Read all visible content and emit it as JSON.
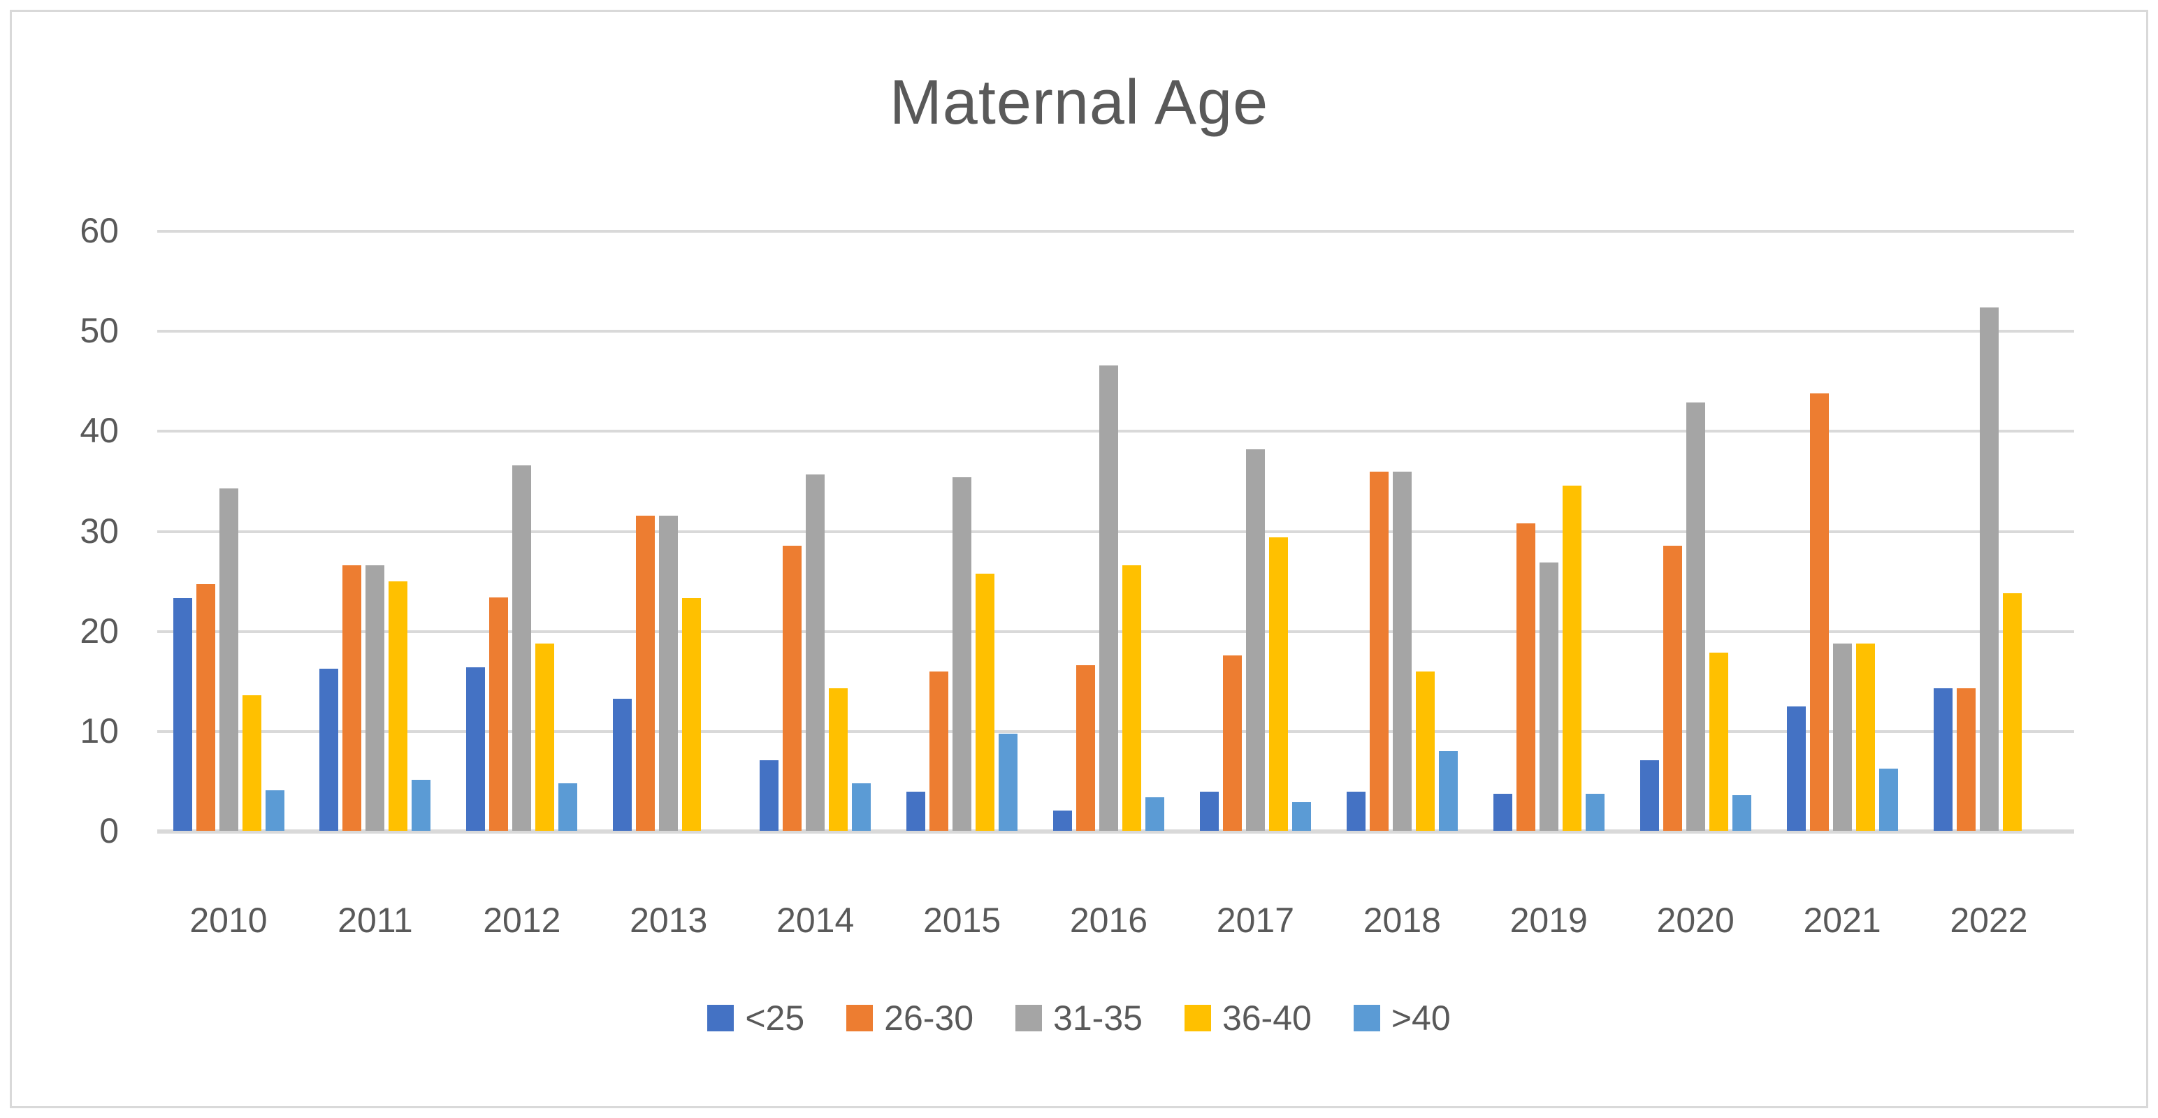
{
  "chart": {
    "background": "#FFFFFF",
    "border_color": "#D9D9D9",
    "grid_color": "#D9D9D9",
    "text_color": "#595959"
  },
  "chart_data": {
    "type": "bar",
    "title": "Maternal Age",
    "xlabel": "",
    "ylabel": "",
    "ylim": [
      0,
      60
    ],
    "yticks": [
      0,
      10,
      20,
      30,
      40,
      50,
      60
    ],
    "grid": true,
    "legend_position": "bottom",
    "categories": [
      "2010",
      "2011",
      "2012",
      "2013",
      "2014",
      "2015",
      "2016",
      "2017",
      "2018",
      "2019",
      "2020",
      "2021",
      "2022"
    ],
    "series": [
      {
        "name": "<25",
        "key": "lt25",
        "color": "#4472C4",
        "values": [
          23.3,
          16.3,
          16.4,
          13.3,
          7.1,
          4.0,
          2.1,
          4.0,
          4.0,
          3.8,
          7.1,
          12.5,
          14.3
        ]
      },
      {
        "name": "26-30",
        "key": "26-30",
        "color": "#ED7D31",
        "values": [
          24.7,
          26.6,
          23.4,
          31.6,
          28.6,
          16.0,
          16.6,
          17.6,
          36.0,
          30.8,
          28.6,
          43.8,
          14.3
        ]
      },
      {
        "name": "31-35",
        "key": "31-35",
        "color": "#A5A5A5",
        "values": [
          34.3,
          26.6,
          36.6,
          31.6,
          35.7,
          35.4,
          46.6,
          38.2,
          36.0,
          26.9,
          42.9,
          18.8,
          52.4
        ]
      },
      {
        "name": "36-40",
        "key": "36-40",
        "color": "#FFC000",
        "values": [
          13.6,
          25.0,
          18.8,
          23.3,
          14.3,
          25.8,
          26.6,
          29.4,
          16.0,
          34.6,
          17.9,
          18.8,
          23.8
        ]
      },
      {
        "name": ">40",
        "key": "gt40",
        "color": "#5B9BD5",
        "values": [
          4.1,
          5.2,
          4.8,
          0,
          4.8,
          9.8,
          3.4,
          2.9,
          8.0,
          3.8,
          3.6,
          6.3,
          0
        ]
      }
    ]
  }
}
